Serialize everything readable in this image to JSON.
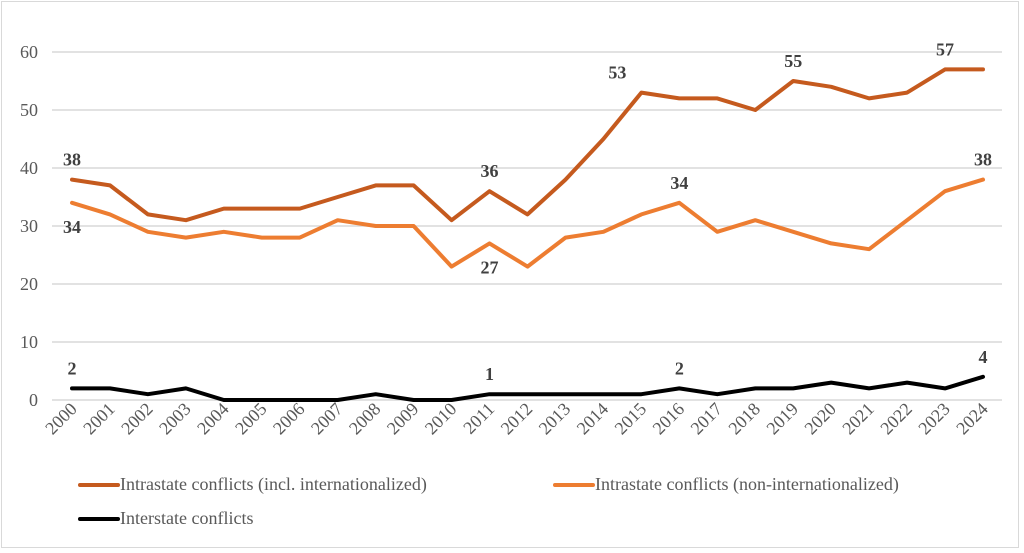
{
  "chart_data": {
    "type": "line",
    "title": "",
    "xlabel": "",
    "ylabel": "",
    "ylim": [
      0,
      60
    ],
    "yticks": [
      0,
      10,
      20,
      30,
      40,
      50,
      60
    ],
    "grid": true,
    "legend_position": "bottom",
    "x": [
      "2000",
      "2001",
      "2002",
      "2003",
      "2004",
      "2005",
      "2006",
      "2007",
      "2008",
      "2009",
      "2010",
      "2011",
      "2012",
      "2013",
      "2014",
      "2015",
      "2016",
      "2017",
      "2018",
      "2019",
      "2020",
      "2021",
      "2022",
      "2023",
      "2024"
    ],
    "series": [
      {
        "name": "Intrastate conflicts (incl. internationalized)",
        "color": "#C55A1E",
        "values": [
          38,
          37,
          32,
          31,
          33,
          33,
          33,
          35,
          37,
          37,
          31,
          36,
          32,
          38,
          45,
          53,
          52,
          52,
          50,
          55,
          54,
          52,
          53,
          57,
          57
        ],
        "labels": [
          {
            "year": "2000",
            "value": "38",
            "pos": "above"
          },
          {
            "year": "2011",
            "value": "36",
            "pos": "above"
          },
          {
            "year": "2015",
            "value": "53",
            "pos": "above-left"
          },
          {
            "year": "2019",
            "value": "55",
            "pos": "above"
          },
          {
            "year": "2023",
            "value": "57",
            "pos": "above"
          }
        ]
      },
      {
        "name": "Intrastate conflicts (non-internationalized)",
        "color": "#ED7D31",
        "values": [
          34,
          32,
          29,
          28,
          29,
          28,
          28,
          31,
          30,
          30,
          23,
          27,
          23,
          28,
          29,
          32,
          34,
          29,
          31,
          29,
          27,
          26,
          31,
          36,
          38
        ],
        "labels": [
          {
            "year": "2000",
            "value": "34",
            "pos": "below"
          },
          {
            "year": "2011",
            "value": "27",
            "pos": "below"
          },
          {
            "year": "2016",
            "value": "34",
            "pos": "above"
          },
          {
            "year": "2024",
            "value": "38",
            "pos": "above"
          }
        ]
      },
      {
        "name": "Interstate conflicts",
        "color": "#000000",
        "values": [
          2,
          2,
          1,
          2,
          0,
          0,
          0,
          0,
          1,
          0,
          0,
          1,
          1,
          1,
          1,
          1,
          2,
          1,
          2,
          2,
          3,
          2,
          3,
          2,
          4
        ],
        "labels": [
          {
            "year": "2000",
            "value": "2",
            "pos": "above"
          },
          {
            "year": "2011",
            "value": "1",
            "pos": "above"
          },
          {
            "year": "2016",
            "value": "2",
            "pos": "above"
          },
          {
            "year": "2024",
            "value": "4",
            "pos": "above"
          }
        ]
      }
    ]
  }
}
